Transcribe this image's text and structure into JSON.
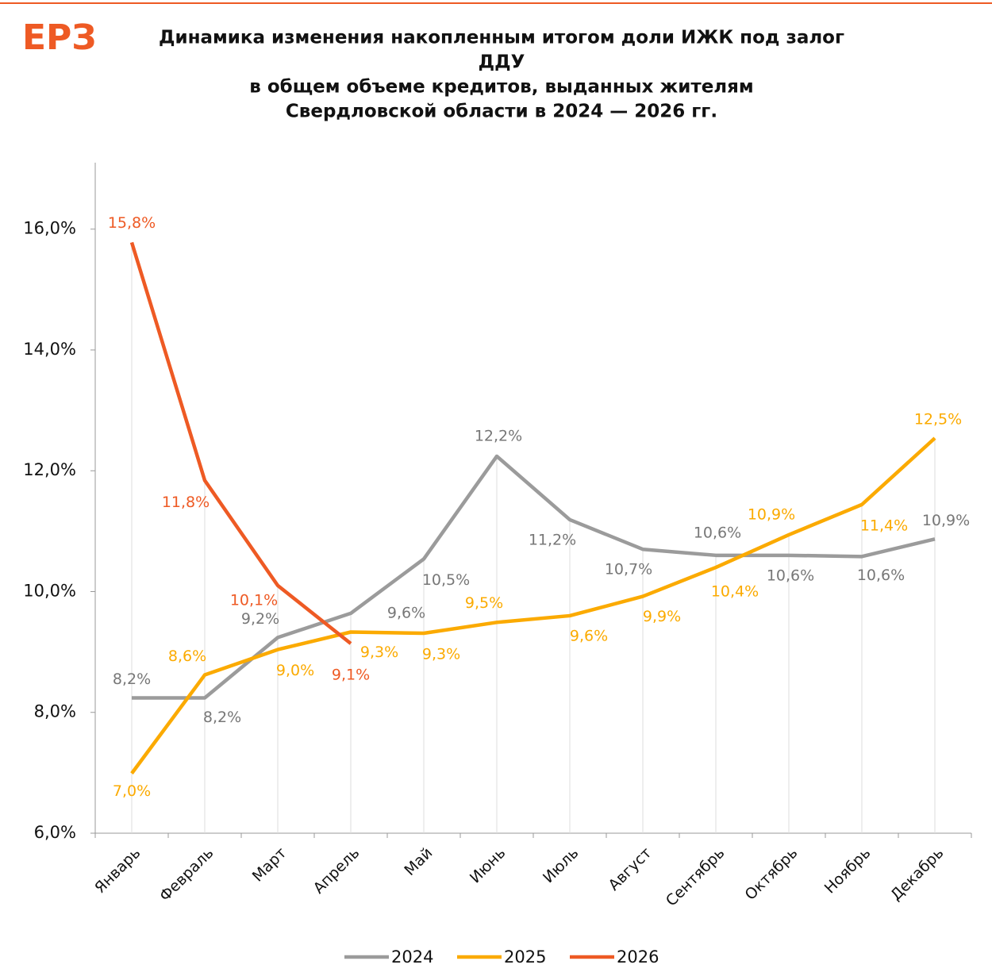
{
  "logo": "ЕРЗ",
  "chart_data": {
    "type": "line",
    "title": [
      "Динамика изменения накопленным итогом доли ИЖК под залог",
      "ДДУ",
      "в общем объеме кредитов, выданных жителям",
      "Свердловской области в 2024 — 2026 гг."
    ],
    "categories": [
      "Январь",
      "Февраль",
      "Март",
      "Апрель",
      "Май",
      "Июнь",
      "Июль",
      "Август",
      "Сентябрь",
      "Октябрь",
      "Ноябрь",
      "Декабрь"
    ],
    "series": [
      {
        "name": "2024",
        "color": "#9b9b9b",
        "values": [
          8.24,
          8.24,
          9.24,
          9.64,
          10.54,
          12.24,
          11.19,
          10.7,
          10.6,
          10.6,
          10.58,
          10.87
        ],
        "value_labels": [
          "8,2%",
          "8,2%",
          "9,2%",
          "9,6%",
          "10,5%",
          "12,2%",
          "11,2%",
          "10,7%",
          "10,6%",
          "10,6%",
          "10,6%",
          "10,9%"
        ]
      },
      {
        "name": "2025",
        "color": "#fbaa00",
        "values": [
          6.99,
          8.62,
          9.04,
          9.33,
          9.31,
          9.49,
          9.6,
          9.92,
          10.4,
          10.94,
          11.44,
          12.54
        ],
        "value_labels": [
          "7,0%",
          "8,6%",
          "9,0%",
          "9,3%",
          "9,3%",
          "9,5%",
          "9,6%",
          "9,9%",
          "10,4%",
          "10,9%",
          "11,4%",
          "12,5%"
        ]
      },
      {
        "name": "2026",
        "color": "#ee5a24",
        "values": [
          15.78,
          11.84,
          10.1,
          9.14,
          null,
          null,
          null,
          null,
          null,
          null,
          null,
          null
        ],
        "value_labels": [
          "15,8%",
          "11,8%",
          "10,1%",
          "9,1%",
          null,
          null,
          null,
          null,
          null,
          null,
          null,
          null
        ]
      }
    ],
    "ylim": [
      6,
      17.1
    ],
    "yticks": [
      {
        "value": 6,
        "label": "6,0%"
      },
      {
        "value": 8,
        "label": "8,0%"
      },
      {
        "value": 10,
        "label": "10,0%"
      },
      {
        "value": 12,
        "label": "12,0%"
      },
      {
        "value": 14,
        "label": "14,0%"
      },
      {
        "value": 16,
        "label": "16,0%"
      }
    ],
    "grid": true,
    "legend": "bottom"
  }
}
